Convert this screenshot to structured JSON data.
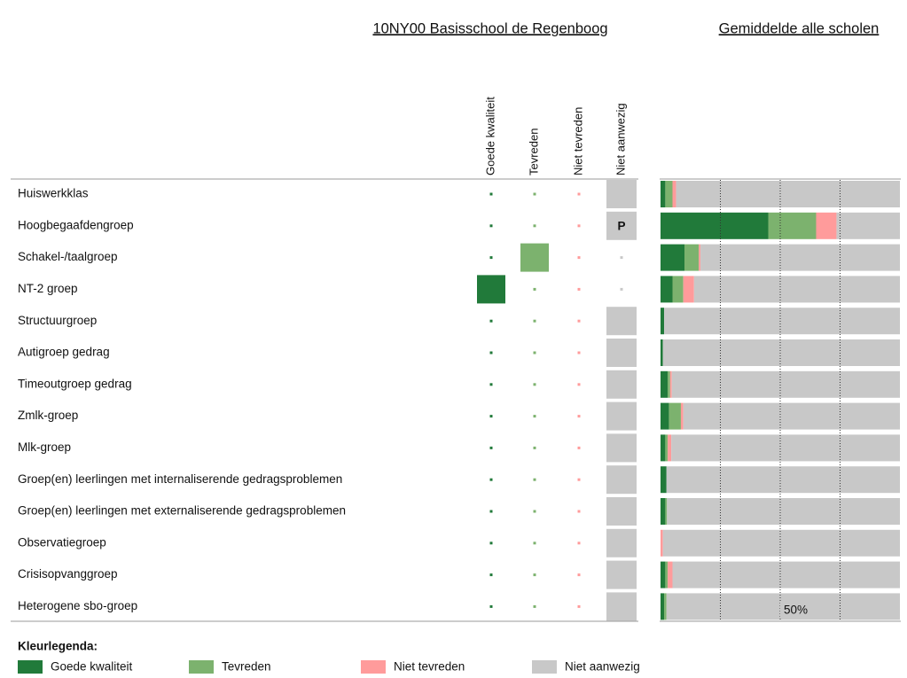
{
  "school_title": "10NY00 Basisschool de Regenboog",
  "legend_title": "Kleurlegenda:",
  "matrix": {
    "choices": [
      3,
      3,
      1,
      0,
      3,
      3,
      3,
      3,
      3,
      3,
      3,
      3,
      3,
      3
    ],
    "notes": [
      {
        "row": 1,
        "text": "P"
      }
    ]
  },
  "chart_data": {
    "type": "stacked-barh",
    "title": "Gemiddelde alle scholen",
    "categories": [
      "Huiswerkklas",
      "Hoogbegaafdengroep",
      "Schakel-/taalgroep",
      "NT-2 groep",
      "Structuurgroep",
      "Autigroep gedrag",
      "Timeoutgroep gedrag",
      "Zmlk-groep",
      "Mlk-groep",
      "Groep(en) leerlingen met internaliserende gedragsproblemen",
      "Groep(en) leerlingen met externaliserende gedragsproblemen",
      "Observatiegroep",
      "Crisisopvanggroep",
      "Heterogene sbo-groep"
    ],
    "series": [
      {
        "name": "Goede kwaliteit",
        "color": "#217a3a",
        "values": [
          2,
          45,
          10,
          5,
          1.5,
          1,
          3,
          3.5,
          2,
          2.5,
          2,
          0,
          2,
          1.5
        ]
      },
      {
        "name": "Tevreden",
        "color": "#7cb26e",
        "values": [
          3,
          20,
          6,
          4.5,
          0,
          0,
          1,
          5,
          1,
          0,
          0.7,
          0,
          1,
          1
        ]
      },
      {
        "name": "Niet tevreden",
        "color": "#ff9b9b",
        "values": [
          1.5,
          8.5,
          0.7,
          4.5,
          0,
          0,
          0.7,
          1,
          1.5,
          0,
          0,
          1,
          2,
          0
        ]
      },
      {
        "name": "Niet aanwezig",
        "color": "#c8c8c8",
        "values": [
          93.5,
          26.5,
          83.3,
          86,
          98.5,
          99,
          95.3,
          90.5,
          95.5,
          97.5,
          97.3,
          99,
          95,
          97.5
        ]
      }
    ],
    "xlim": [
      0,
      100
    ],
    "gridlines": [
      25,
      50,
      75
    ],
    "xticks": [
      {
        "value": 50,
        "label": "50%"
      }
    ]
  }
}
